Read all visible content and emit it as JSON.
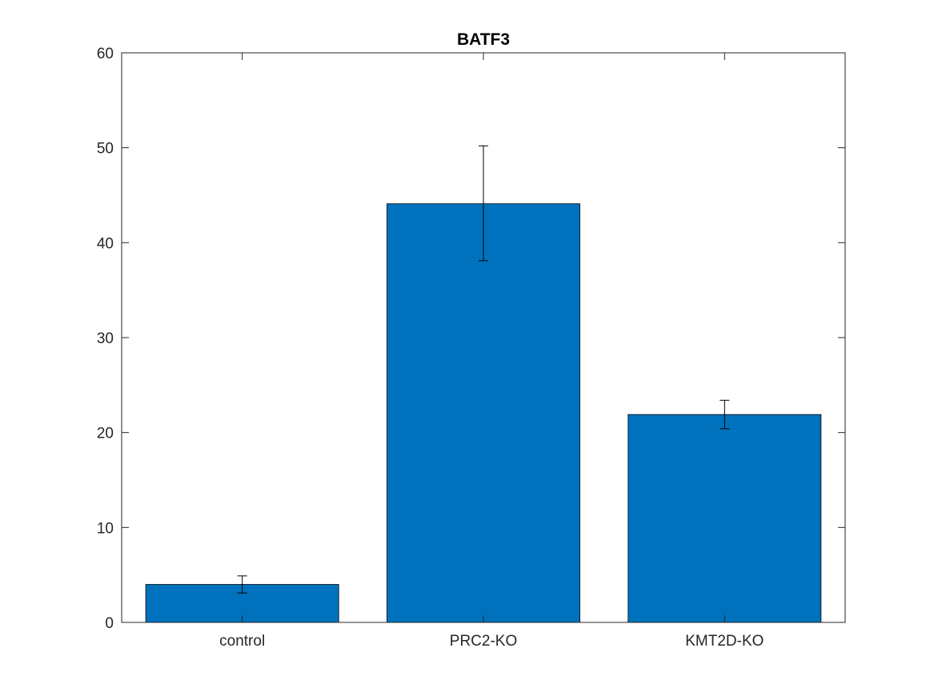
{
  "chart_data": {
    "type": "bar",
    "title": "BATF3",
    "xlabel": "",
    "ylabel": "",
    "categories": [
      "control",
      "PRC2-KO",
      "KMT2D-KO"
    ],
    "values": [
      4.0,
      44.1,
      21.9
    ],
    "error": [
      {
        "low": 3.1,
        "high": 4.9
      },
      {
        "low": 38.1,
        "high": 50.2
      },
      {
        "low": 20.4,
        "high": 23.4
      }
    ],
    "ylim": [
      0,
      60
    ],
    "yticks": [
      0,
      10,
      20,
      30,
      40,
      50,
      60
    ],
    "ytick_labels": [
      "0",
      "10",
      "20",
      "30",
      "40",
      "50",
      "60"
    ],
    "bar_color": "#0072BD",
    "grid": false,
    "legend": "none"
  }
}
